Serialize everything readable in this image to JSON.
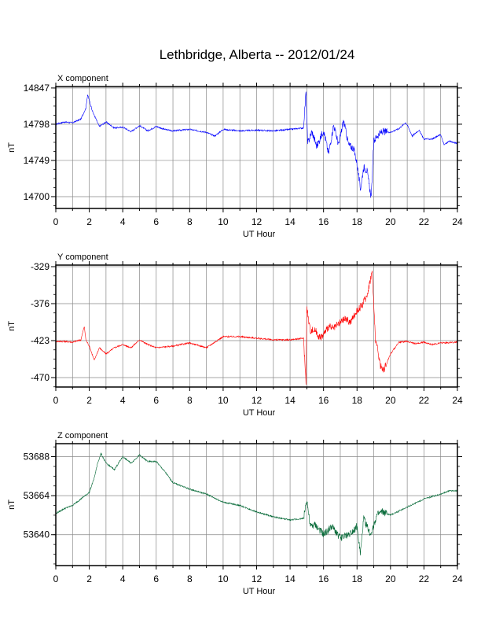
{
  "page": {
    "title": "Lethbridge, Alberta -- 2012/01/24"
  },
  "colors": {
    "x_series": "#0000ff",
    "y_series": "#ff0000",
    "z_series": "#006633",
    "grid": "#888888",
    "frame": "#000000"
  },
  "chart_data": [
    {
      "type": "line",
      "title": "Lethbridge, Alberta -- 2012/01/24",
      "panel_label": "X component",
      "xlabel": "UT Hour",
      "ylabel": "nT",
      "xlim": [
        0,
        24
      ],
      "ylim": [
        14684,
        14849
      ],
      "xticks": [
        "0",
        "2",
        "4",
        "6",
        "8",
        "10",
        "12",
        "14",
        "16",
        "18",
        "20",
        "22",
        "24"
      ],
      "yticks": [
        "14847",
        "14798",
        "14749",
        "14700"
      ],
      "grid": true,
      "series": [
        {
          "x": [
            0,
            0.5,
            1.0,
            1.5,
            1.8,
            1.9,
            2.2,
            2.6,
            3.0,
            3.5,
            4.0,
            4.5,
            5.0,
            5.5,
            6.0,
            6.5,
            7.0,
            8.0,
            9.0,
            9.5,
            10.0,
            11.0,
            12.0,
            13.0,
            14.0,
            14.8,
            14.95,
            15.05,
            15.3,
            15.6,
            16.0,
            16.3,
            16.6,
            16.9,
            17.2,
            17.5,
            17.8,
            18.0,
            18.2,
            18.4,
            18.6,
            18.85,
            19.0,
            19.2,
            19.5,
            20.0,
            20.5,
            20.9,
            21.0,
            21.3,
            21.7,
            22.0,
            22.5,
            23.0,
            23.2,
            23.5,
            24.0
          ],
          "y": [
            14798,
            14801,
            14800,
            14805,
            14820,
            14838,
            14815,
            14795,
            14801,
            14793,
            14794,
            14788,
            14796,
            14789,
            14795,
            14791,
            14789,
            14791,
            14787,
            14782,
            14791,
            14789,
            14790,
            14789,
            14791,
            14793,
            14842,
            14772,
            14788,
            14768,
            14790,
            14758,
            14797,
            14770,
            14803,
            14770,
            14765,
            14745,
            14710,
            14740,
            14735,
            14698,
            14775,
            14782,
            14788,
            14787,
            14792,
            14800,
            14797,
            14782,
            14790,
            14778,
            14778,
            14784,
            14770,
            14775,
            14772
          ]
        }
      ]
    },
    {
      "type": "line",
      "panel_label": "Y component",
      "xlabel": "UT Hour",
      "ylabel": "nT",
      "xlim": [
        0,
        24
      ],
      "ylim": [
        -482,
        -327
      ],
      "xticks": [
        "0",
        "2",
        "4",
        "6",
        "8",
        "10",
        "12",
        "14",
        "16",
        "18",
        "20",
        "22",
        "24"
      ],
      "yticks": [
        "-329",
        "-376",
        "-423",
        "-470"
      ],
      "grid": true,
      "series": [
        {
          "x": [
            0,
            0.5,
            1.0,
            1.5,
            1.7,
            1.8,
            2.0,
            2.3,
            2.6,
            3.0,
            3.5,
            4.0,
            4.5,
            5.0,
            5.5,
            6.0,
            7.0,
            8.0,
            9.0,
            10.0,
            11.0,
            12.0,
            13.0,
            14.0,
            14.8,
            14.95,
            15.0,
            15.2,
            15.5,
            15.8,
            16.0,
            16.3,
            16.6,
            17.0,
            17.3,
            17.6,
            18.0,
            18.3,
            18.6,
            18.9,
            19.1,
            19.4,
            19.6,
            20.0,
            20.5,
            21.0,
            21.5,
            22.0,
            22.5,
            23.0,
            24.0
          ],
          "y": [
            -424,
            -424,
            -425,
            -422,
            -405,
            -422,
            -430,
            -448,
            -432,
            -440,
            -432,
            -428,
            -432,
            -422,
            -428,
            -432,
            -430,
            -426,
            -432,
            -418,
            -418,
            -420,
            -422,
            -422,
            -420,
            -475,
            -382,
            -410,
            -410,
            -420,
            -415,
            -405,
            -408,
            -400,
            -395,
            -400,
            -385,
            -378,
            -365,
            -335,
            -420,
            -455,
            -460,
            -440,
            -425,
            -424,
            -427,
            -425,
            -428,
            -426,
            -425
          ]
        }
      ]
    },
    {
      "type": "line",
      "panel_label": "Z component",
      "xlabel": "UT Hour",
      "ylabel": "nT",
      "xlim": [
        0,
        24
      ],
      "ylim": [
        53621,
        53696
      ],
      "xticks": [
        "0",
        "2",
        "4",
        "6",
        "8",
        "10",
        "12",
        "14",
        "16",
        "18",
        "20",
        "22",
        "24"
      ],
      "yticks": [
        "53688",
        "53664",
        "53640"
      ],
      "grid": true,
      "series": [
        {
          "x": [
            0,
            0.5,
            1.0,
            1.5,
            2.0,
            2.3,
            2.5,
            2.7,
            3.0,
            3.5,
            4.0,
            4.5,
            5.0,
            5.5,
            6.0,
            6.5,
            7.0,
            8.0,
            9.0,
            10.0,
            11.0,
            12.0,
            13.0,
            14.0,
            14.8,
            15.0,
            15.2,
            15.5,
            16.0,
            16.5,
            17.0,
            17.5,
            18.0,
            18.2,
            18.4,
            18.8,
            19.2,
            19.5,
            20.0,
            21.0,
            22.0,
            23.0,
            23.5,
            24.0
          ],
          "y": [
            53653,
            53656,
            53658,
            53662,
            53666,
            53675,
            53684,
            53690,
            53684,
            53680,
            53688,
            53684,
            53689,
            53685,
            53685,
            53679,
            53672,
            53668,
            53665,
            53660,
            53658,
            53654,
            53651,
            53649,
            53650,
            53662,
            53645,
            53646,
            53640,
            53645,
            53638,
            53640,
            53645,
            53628,
            53650,
            53640,
            53652,
            53654,
            53652,
            53657,
            53662,
            53665,
            53667,
            53667
          ]
        }
      ]
    }
  ]
}
